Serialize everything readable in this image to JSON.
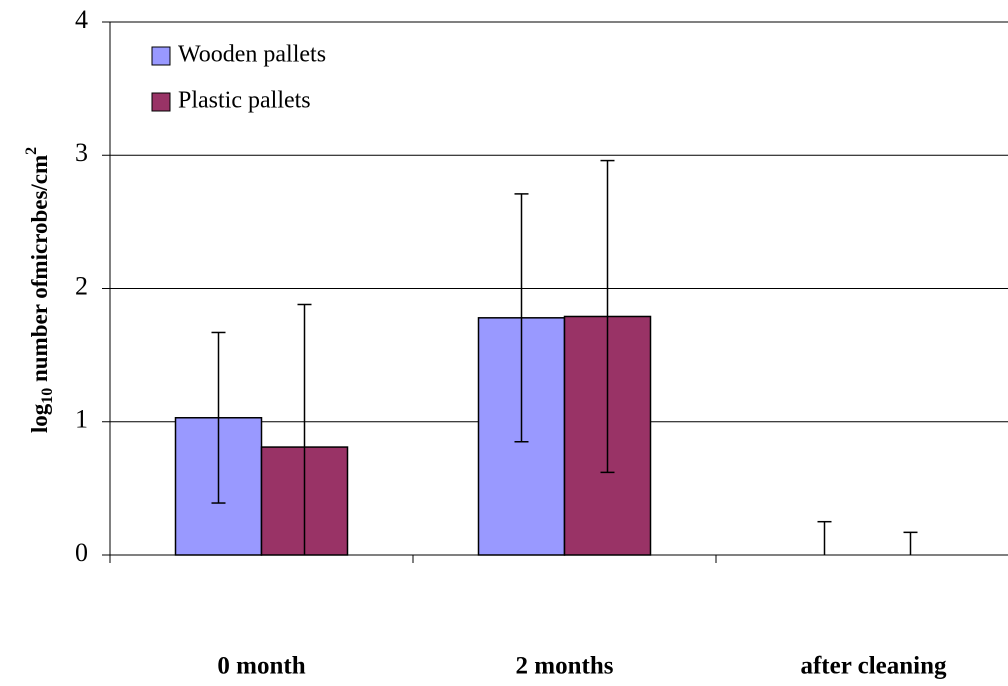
{
  "chart_data": {
    "type": "bar",
    "ylabel": {
      "base": "log",
      "sub": "10",
      "text": " number ofmicrobes/cm",
      "sup": "2"
    },
    "categories": [
      "0 month",
      "2 months",
      "after cleaning"
    ],
    "series": [
      {
        "name": "Wooden pallets",
        "color": "#9999ff",
        "values": [
          1.03,
          1.78,
          0
        ],
        "errors": [
          0.64,
          0.93,
          0.25
        ]
      },
      {
        "name": "Plastic pallets",
        "color": "#993366",
        "values": [
          0.81,
          1.79,
          0
        ],
        "errors": [
          1.07,
          1.17,
          0.17
        ]
      }
    ],
    "ylim": [
      0,
      4
    ],
    "yticks": [
      0,
      1,
      2,
      3,
      4
    ],
    "grid": true,
    "legend": "upper left"
  }
}
